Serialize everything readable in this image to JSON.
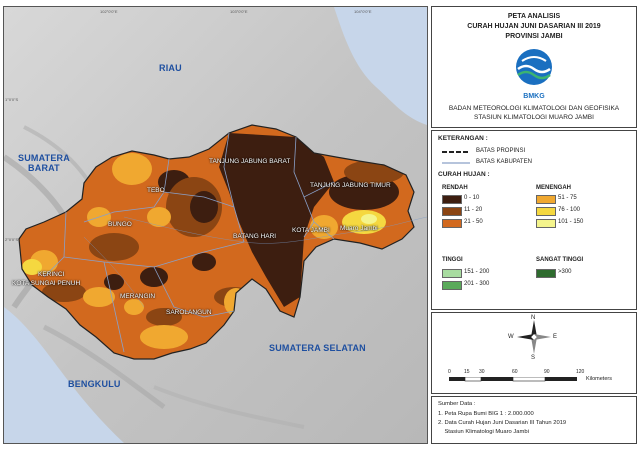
{
  "title": {
    "line1": "PETA ANALISIS",
    "line2": "CURAH HUJAN JUNI DASARIAN III 2019",
    "line3": "PROVINSI JAMBI"
  },
  "logo": {
    "text": "BMKG",
    "icon": "bmkg-logo"
  },
  "org": {
    "line1": "BADAN METEOROLOGI KLIMATOLOGI DAN GEOFISIKA",
    "line2": "STASIUN KLIMATOLOGI MUARO JAMBI"
  },
  "legend": {
    "heading": "KETERANGAN :",
    "lines": [
      {
        "label": "BATAS PROPINSI",
        "color": "#222222"
      },
      {
        "label": "BATAS KABUPATEN",
        "color": "#8aa0c8"
      }
    ],
    "rain_heading": "CURAH HUJAN :",
    "groups": [
      {
        "name": "RENDAH",
        "classes": [
          {
            "label": "0 - 10",
            "color": "#3d1e10"
          },
          {
            "label": "11 - 20",
            "color": "#8b4513"
          },
          {
            "label": "21 - 50",
            "color": "#d2691e"
          }
        ]
      },
      {
        "name": "MENENGAH",
        "classes": [
          {
            "label": "51 - 75",
            "color": "#f0a830"
          },
          {
            "label": "76 - 100",
            "color": "#f5d840"
          },
          {
            "label": "101 - 150",
            "color": "#f4f48c"
          }
        ]
      },
      {
        "name": "TINGGI",
        "classes": [
          {
            "label": "151 - 200",
            "color": "#a8dca0"
          },
          {
            "label": "201 - 300",
            "color": "#5aaa5a"
          }
        ]
      },
      {
        "name": "SANGAT TINGGI",
        "classes": [
          {
            "label": ">300",
            "color": "#2e6b2e"
          }
        ]
      }
    ]
  },
  "compass": {
    "n": "N",
    "s": "S",
    "e": "E",
    "w": "W"
  },
  "scale": {
    "ticks": [
      "0",
      "15",
      "30",
      "60",
      "90",
      "120"
    ],
    "unit": "Kilometers"
  },
  "source": {
    "heading": "Sumber Data :",
    "items": [
      "1. Peta Rupa Bumi BIG 1 : 2.000.000",
      "2. Data Curah Hujan Juni Dasarian III Tahun 2019",
      "    Stasiun Klimatologi Muaro Jambi"
    ]
  },
  "map": {
    "regions": {
      "riau": "RIAU",
      "sumbar": "SUMATERA\nBARAT",
      "sumsel": "SUMATERA SELATAN",
      "bengkulu": "BENGKULU"
    },
    "places": [
      {
        "name": "TANJUNG JABUNG BARAT",
        "id": "tanjabbar"
      },
      {
        "name": "TANJUNG JABUNG TIMUR",
        "id": "tanjabtim"
      },
      {
        "name": "TEBO",
        "id": "tebo"
      },
      {
        "name": "BUNGO",
        "id": "bungo"
      },
      {
        "name": "BATANG HARI",
        "id": "batanghari"
      },
      {
        "name": "KOTA JAMBI",
        "id": "kotajambi"
      },
      {
        "name": "Muaro Jambi",
        "id": "muarojambi"
      },
      {
        "name": "KERINCI",
        "id": "kerinci"
      },
      {
        "name": "KOTA SUNGAI PENUH",
        "id": "sungaipenuh"
      },
      {
        "name": "MERANGIN",
        "id": "merangin"
      },
      {
        "name": "SAROLANGUN",
        "id": "sarolangun"
      }
    ],
    "ticks_top": [
      "102°0'0\"E",
      "103°0'0\"E",
      "104°0'0\"E"
    ],
    "ticks_left": [
      "1°0'0\"S",
      "2°0'0\"S"
    ]
  }
}
